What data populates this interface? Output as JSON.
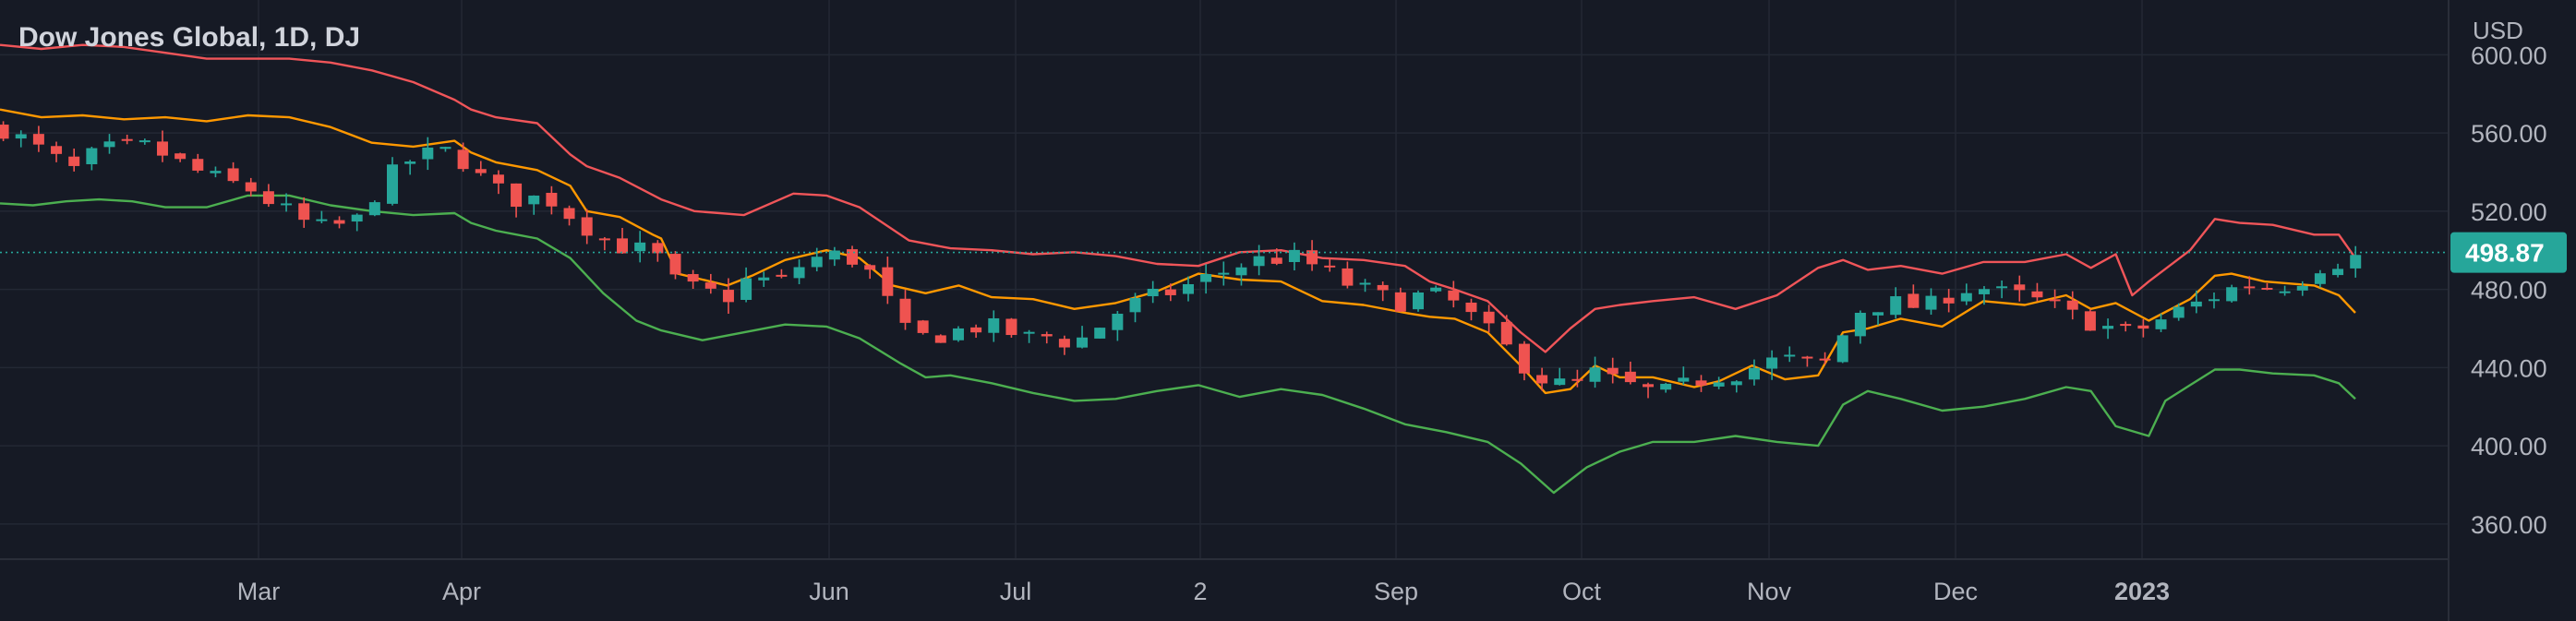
{
  "header": {
    "title": "Dow Jones Global, 1D, DJ"
  },
  "price_scale": {
    "currency": "USD"
  },
  "colors": {
    "background": "#161a25",
    "grid": "#232834",
    "text": "#b2b5be",
    "up": "#26a69a",
    "down": "#ef5350",
    "upper_band": "#f05559",
    "middle_band": "#ff9800",
    "lower_band": "#4caf50",
    "last_price": "#26a69a"
  },
  "chart_data": {
    "type": "candlestick",
    "title": "Dow Jones Global, 1D, DJ",
    "y_axis": {
      "ticks": [
        "360.00",
        "400.00",
        "440.00",
        "480.00",
        "520.00",
        "560.00",
        "600.00"
      ],
      "range": [
        342,
        628
      ]
    },
    "x_axis": {
      "labels": [
        "Mar",
        "Apr",
        "Jun",
        "Jul",
        "2",
        "Sep",
        "Oct",
        "Nov",
        "Dec",
        "2023"
      ],
      "bold": [
        "2023"
      ]
    },
    "last_price": {
      "value": 498.87,
      "label": "498.87"
    },
    "grid": true,
    "bands": [
      {
        "key": "upper",
        "color": "#f05559",
        "points": [
          [
            0,
            605
          ],
          [
            25,
            603
          ],
          [
            50,
            605
          ],
          [
            75,
            604
          ],
          [
            100,
            601
          ],
          [
            125,
            598
          ],
          [
            150,
            598
          ],
          [
            175,
            598
          ],
          [
            200,
            596
          ],
          [
            225,
            592
          ],
          [
            250,
            586
          ],
          [
            275,
            577
          ],
          [
            285,
            572
          ],
          [
            300,
            568
          ],
          [
            325,
            565
          ],
          [
            345,
            549
          ],
          [
            355,
            543
          ],
          [
            375,
            537
          ],
          [
            400,
            526
          ],
          [
            420,
            520
          ],
          [
            450,
            518
          ],
          [
            480,
            529
          ],
          [
            500,
            528
          ],
          [
            520,
            522
          ],
          [
            550,
            505
          ],
          [
            575,
            501
          ],
          [
            600,
            500
          ],
          [
            625,
            498
          ],
          [
            650,
            499
          ],
          [
            675,
            497
          ],
          [
            700,
            493
          ],
          [
            725,
            492
          ],
          [
            750,
            499
          ],
          [
            775,
            500
          ],
          [
            800,
            496
          ],
          [
            825,
            495
          ],
          [
            850,
            492
          ],
          [
            865,
            484
          ],
          [
            880,
            480
          ],
          [
            900,
            474
          ],
          [
            920,
            458
          ],
          [
            935,
            448
          ],
          [
            950,
            460
          ],
          [
            965,
            470
          ],
          [
            980,
            472
          ],
          [
            1000,
            474
          ],
          [
            1025,
            476
          ],
          [
            1050,
            470
          ],
          [
            1075,
            477
          ],
          [
            1100,
            491
          ],
          [
            1115,
            495
          ],
          [
            1130,
            490
          ],
          [
            1150,
            492
          ],
          [
            1175,
            488
          ],
          [
            1200,
            494
          ],
          [
            1225,
            494
          ],
          [
            1250,
            498
          ],
          [
            1265,
            491
          ],
          [
            1280,
            498
          ],
          [
            1290,
            477
          ],
          [
            1300,
            484
          ],
          [
            1325,
            500
          ],
          [
            1340,
            516
          ],
          [
            1355,
            514
          ],
          [
            1375,
            513
          ],
          [
            1400,
            508
          ],
          [
            1415,
            508
          ],
          [
            1425,
            496
          ]
        ]
      },
      {
        "key": "middle",
        "color": "#ff9800",
        "points": [
          [
            0,
            572
          ],
          [
            25,
            568
          ],
          [
            50,
            569
          ],
          [
            75,
            567
          ],
          [
            100,
            568
          ],
          [
            125,
            566
          ],
          [
            150,
            569
          ],
          [
            175,
            568
          ],
          [
            200,
            563
          ],
          [
            225,
            555
          ],
          [
            250,
            553
          ],
          [
            275,
            556
          ],
          [
            285,
            550
          ],
          [
            300,
            545
          ],
          [
            325,
            541
          ],
          [
            345,
            533
          ],
          [
            355,
            520
          ],
          [
            375,
            517
          ],
          [
            395,
            508
          ],
          [
            400,
            506
          ],
          [
            410,
            488
          ],
          [
            425,
            485
          ],
          [
            440,
            482
          ],
          [
            455,
            487
          ],
          [
            475,
            495
          ],
          [
            500,
            500
          ],
          [
            520,
            496
          ],
          [
            540,
            482
          ],
          [
            560,
            478
          ],
          [
            580,
            482
          ],
          [
            600,
            476
          ],
          [
            625,
            475
          ],
          [
            650,
            470
          ],
          [
            675,
            473
          ],
          [
            700,
            479
          ],
          [
            725,
            488
          ],
          [
            750,
            485
          ],
          [
            775,
            484
          ],
          [
            800,
            474
          ],
          [
            825,
            472
          ],
          [
            850,
            468
          ],
          [
            865,
            466
          ],
          [
            880,
            465
          ],
          [
            900,
            458
          ],
          [
            920,
            441
          ],
          [
            935,
            427
          ],
          [
            950,
            429
          ],
          [
            965,
            441
          ],
          [
            980,
            435
          ],
          [
            1000,
            435
          ],
          [
            1025,
            430
          ],
          [
            1040,
            433
          ],
          [
            1060,
            441
          ],
          [
            1080,
            434
          ],
          [
            1100,
            436
          ],
          [
            1115,
            458
          ],
          [
            1130,
            460
          ],
          [
            1150,
            465
          ],
          [
            1175,
            461
          ],
          [
            1200,
            474
          ],
          [
            1225,
            472
          ],
          [
            1250,
            477
          ],
          [
            1265,
            470
          ],
          [
            1280,
            473
          ],
          [
            1300,
            464
          ],
          [
            1325,
            475
          ],
          [
            1340,
            487
          ],
          [
            1350,
            488
          ],
          [
            1370,
            484
          ],
          [
            1400,
            482
          ],
          [
            1415,
            477
          ],
          [
            1425,
            468
          ]
        ]
      },
      {
        "key": "lower",
        "color": "#4caf50",
        "points": [
          [
            0,
            524
          ],
          [
            20,
            523
          ],
          [
            40,
            525
          ],
          [
            60,
            526
          ],
          [
            80,
            525
          ],
          [
            100,
            522
          ],
          [
            125,
            522
          ],
          [
            150,
            528
          ],
          [
            175,
            528
          ],
          [
            200,
            523
          ],
          [
            225,
            520
          ],
          [
            250,
            518
          ],
          [
            275,
            519
          ],
          [
            285,
            514
          ],
          [
            300,
            510
          ],
          [
            325,
            506
          ],
          [
            345,
            496
          ],
          [
            365,
            478
          ],
          [
            385,
            464
          ],
          [
            400,
            459
          ],
          [
            425,
            454
          ],
          [
            450,
            458
          ],
          [
            475,
            462
          ],
          [
            500,
            461
          ],
          [
            520,
            455
          ],
          [
            545,
            442
          ],
          [
            560,
            435
          ],
          [
            575,
            436
          ],
          [
            600,
            432
          ],
          [
            625,
            427
          ],
          [
            650,
            423
          ],
          [
            675,
            424
          ],
          [
            700,
            428
          ],
          [
            725,
            431
          ],
          [
            750,
            425
          ],
          [
            775,
            429
          ],
          [
            800,
            426
          ],
          [
            825,
            419
          ],
          [
            850,
            411
          ],
          [
            875,
            407
          ],
          [
            900,
            402
          ],
          [
            920,
            391
          ],
          [
            940,
            376
          ],
          [
            960,
            389
          ],
          [
            980,
            397
          ],
          [
            1000,
            402
          ],
          [
            1025,
            402
          ],
          [
            1050,
            405
          ],
          [
            1075,
            402
          ],
          [
            1100,
            400
          ],
          [
            1115,
            421
          ],
          [
            1130,
            428
          ],
          [
            1150,
            424
          ],
          [
            1175,
            418
          ],
          [
            1200,
            420
          ],
          [
            1225,
            424
          ],
          [
            1250,
            430
          ],
          [
            1265,
            428
          ],
          [
            1280,
            410
          ],
          [
            1300,
            405
          ],
          [
            1310,
            423
          ],
          [
            1325,
            431
          ],
          [
            1340,
            439
          ],
          [
            1355,
            439
          ],
          [
            1375,
            437
          ],
          [
            1400,
            436
          ],
          [
            1415,
            432
          ],
          [
            1425,
            424
          ]
        ]
      },
      {
        "key": "closes",
        "points": [
          [
            0,
            563
          ],
          [
            15,
            556
          ],
          [
            30,
            548
          ],
          [
            45,
            541
          ],
          [
            60,
            551
          ],
          [
            75,
            552
          ],
          [
            90,
            553
          ],
          [
            105,
            546
          ],
          [
            120,
            540
          ],
          [
            135,
            535
          ],
          [
            150,
            532
          ],
          [
            165,
            524
          ],
          [
            175,
            519
          ],
          [
            190,
            511
          ],
          [
            200,
            512
          ],
          [
            215,
            514
          ],
          [
            230,
            533
          ],
          [
            245,
            545
          ],
          [
            260,
            549
          ],
          [
            275,
            551
          ],
          [
            285,
            541
          ],
          [
            300,
            531
          ],
          [
            315,
            525
          ],
          [
            330,
            528
          ],
          [
            345,
            518
          ],
          [
            355,
            512
          ],
          [
            370,
            503
          ],
          [
            385,
            501
          ],
          [
            400,
            495
          ],
          [
            410,
            482
          ],
          [
            425,
            479
          ],
          [
            440,
            476
          ],
          [
            455,
            487
          ],
          [
            470,
            482
          ],
          [
            485,
            493
          ],
          [
            500,
            498
          ],
          [
            515,
            496
          ],
          [
            530,
            486
          ],
          [
            545,
            459
          ],
          [
            560,
            455
          ],
          [
            575,
            458
          ],
          [
            590,
            461
          ],
          [
            605,
            460
          ],
          [
            620,
            455
          ],
          [
            635,
            456
          ],
          [
            650,
            452
          ],
          [
            665,
            461
          ],
          [
            680,
            471
          ],
          [
            695,
            475
          ],
          [
            710,
            479
          ],
          [
            725,
            484
          ],
          [
            740,
            489
          ],
          [
            755,
            494
          ],
          [
            770,
            496
          ],
          [
            785,
            496
          ],
          [
            800,
            490
          ],
          [
            815,
            483
          ],
          [
            830,
            478
          ],
          [
            845,
            473
          ],
          [
            860,
            477
          ],
          [
            875,
            476
          ],
          [
            890,
            466
          ],
          [
            905,
            455
          ],
          [
            920,
            443
          ],
          [
            935,
            433
          ],
          [
            950,
            430
          ],
          [
            965,
            437
          ],
          [
            980,
            432
          ],
          [
            995,
            428
          ],
          [
            1010,
            427
          ],
          [
            1025,
            433
          ],
          [
            1040,
            436
          ],
          [
            1055,
            438
          ],
          [
            1070,
            443
          ],
          [
            1085,
            444
          ],
          [
            1100,
            440
          ],
          [
            1110,
            446
          ],
          [
            1120,
            468
          ],
          [
            1135,
            472
          ],
          [
            1150,
            473
          ],
          [
            1165,
            470
          ],
          [
            1180,
            478
          ],
          [
            1195,
            482
          ],
          [
            1210,
            478
          ],
          [
            1225,
            476
          ],
          [
            1240,
            472
          ],
          [
            1255,
            466
          ],
          [
            1270,
            462
          ],
          [
            1285,
            458
          ],
          [
            1300,
            461
          ],
          [
            1315,
            468
          ],
          [
            1330,
            473
          ],
          [
            1345,
            479
          ],
          [
            1360,
            483
          ],
          [
            1375,
            481
          ],
          [
            1390,
            484
          ],
          [
            1405,
            493
          ],
          [
            1420,
            495
          ],
          [
            1430,
            498
          ]
        ]
      }
    ]
  }
}
